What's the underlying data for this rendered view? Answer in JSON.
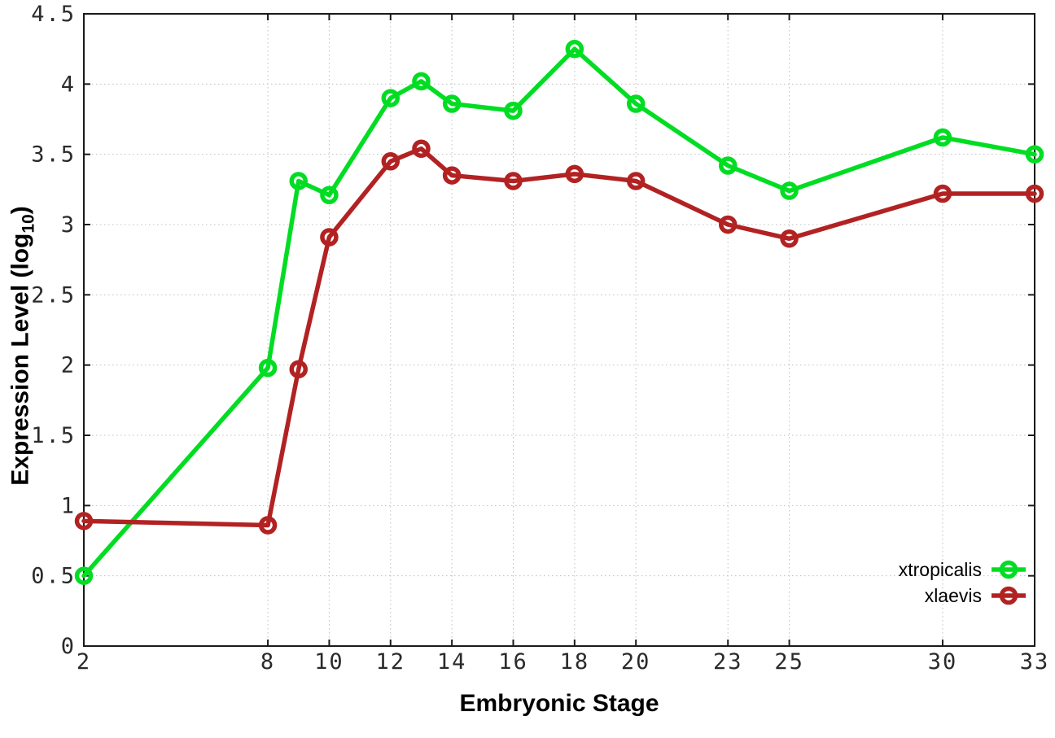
{
  "chart_data": {
    "type": "line",
    "title": "",
    "xlabel": "Embryonic Stage",
    "ylabel": "Expression Level (log10)",
    "ylabel_parts": {
      "main": "Expression Level (log",
      "sub": "10",
      "close": ")"
    },
    "x": [
      2,
      8,
      9,
      10,
      12,
      13,
      14,
      16,
      18,
      20,
      23,
      25,
      30,
      33
    ],
    "series": [
      {
        "name": "xtropicalis",
        "color": "#00dd22",
        "values": [
          0.5,
          1.98,
          3.31,
          3.21,
          3.9,
          4.02,
          3.86,
          3.81,
          4.25,
          3.86,
          3.42,
          3.24,
          3.62,
          3.5
        ]
      },
      {
        "name": "xlaevis",
        "color": "#b22222",
        "values": [
          0.89,
          0.86,
          1.97,
          2.91,
          3.45,
          3.54,
          3.35,
          3.31,
          3.36,
          3.31,
          3.0,
          2.9,
          3.22,
          3.22
        ]
      }
    ],
    "xlim": [
      2,
      33
    ],
    "ylim": [
      0,
      4.5
    ],
    "x_ticks": [
      2,
      8,
      10,
      12,
      14,
      16,
      18,
      20,
      23,
      25,
      30,
      33
    ],
    "x_tick_labels": [
      "2",
      "8",
      "10",
      "12",
      "14",
      "16",
      "18",
      "20",
      "23",
      "25",
      "30",
      "33"
    ],
    "y_ticks": [
      0,
      0.5,
      1,
      1.5,
      2,
      2.5,
      3,
      3.5,
      4,
      4.5
    ],
    "y_tick_labels": [
      "0",
      "0.5",
      "1",
      "1.5",
      "2",
      "2.5",
      "3",
      "3.5",
      "4",
      "4.5"
    ],
    "grid": true,
    "marker": "open-circle",
    "legend_position": "inside-bottom-right",
    "colors": {
      "background": "#ffffff",
      "border": "#1a1a1a",
      "grid": "#bfbfbf",
      "tick": "#1a1a1a",
      "tick_label": "#2a2a2a"
    }
  }
}
